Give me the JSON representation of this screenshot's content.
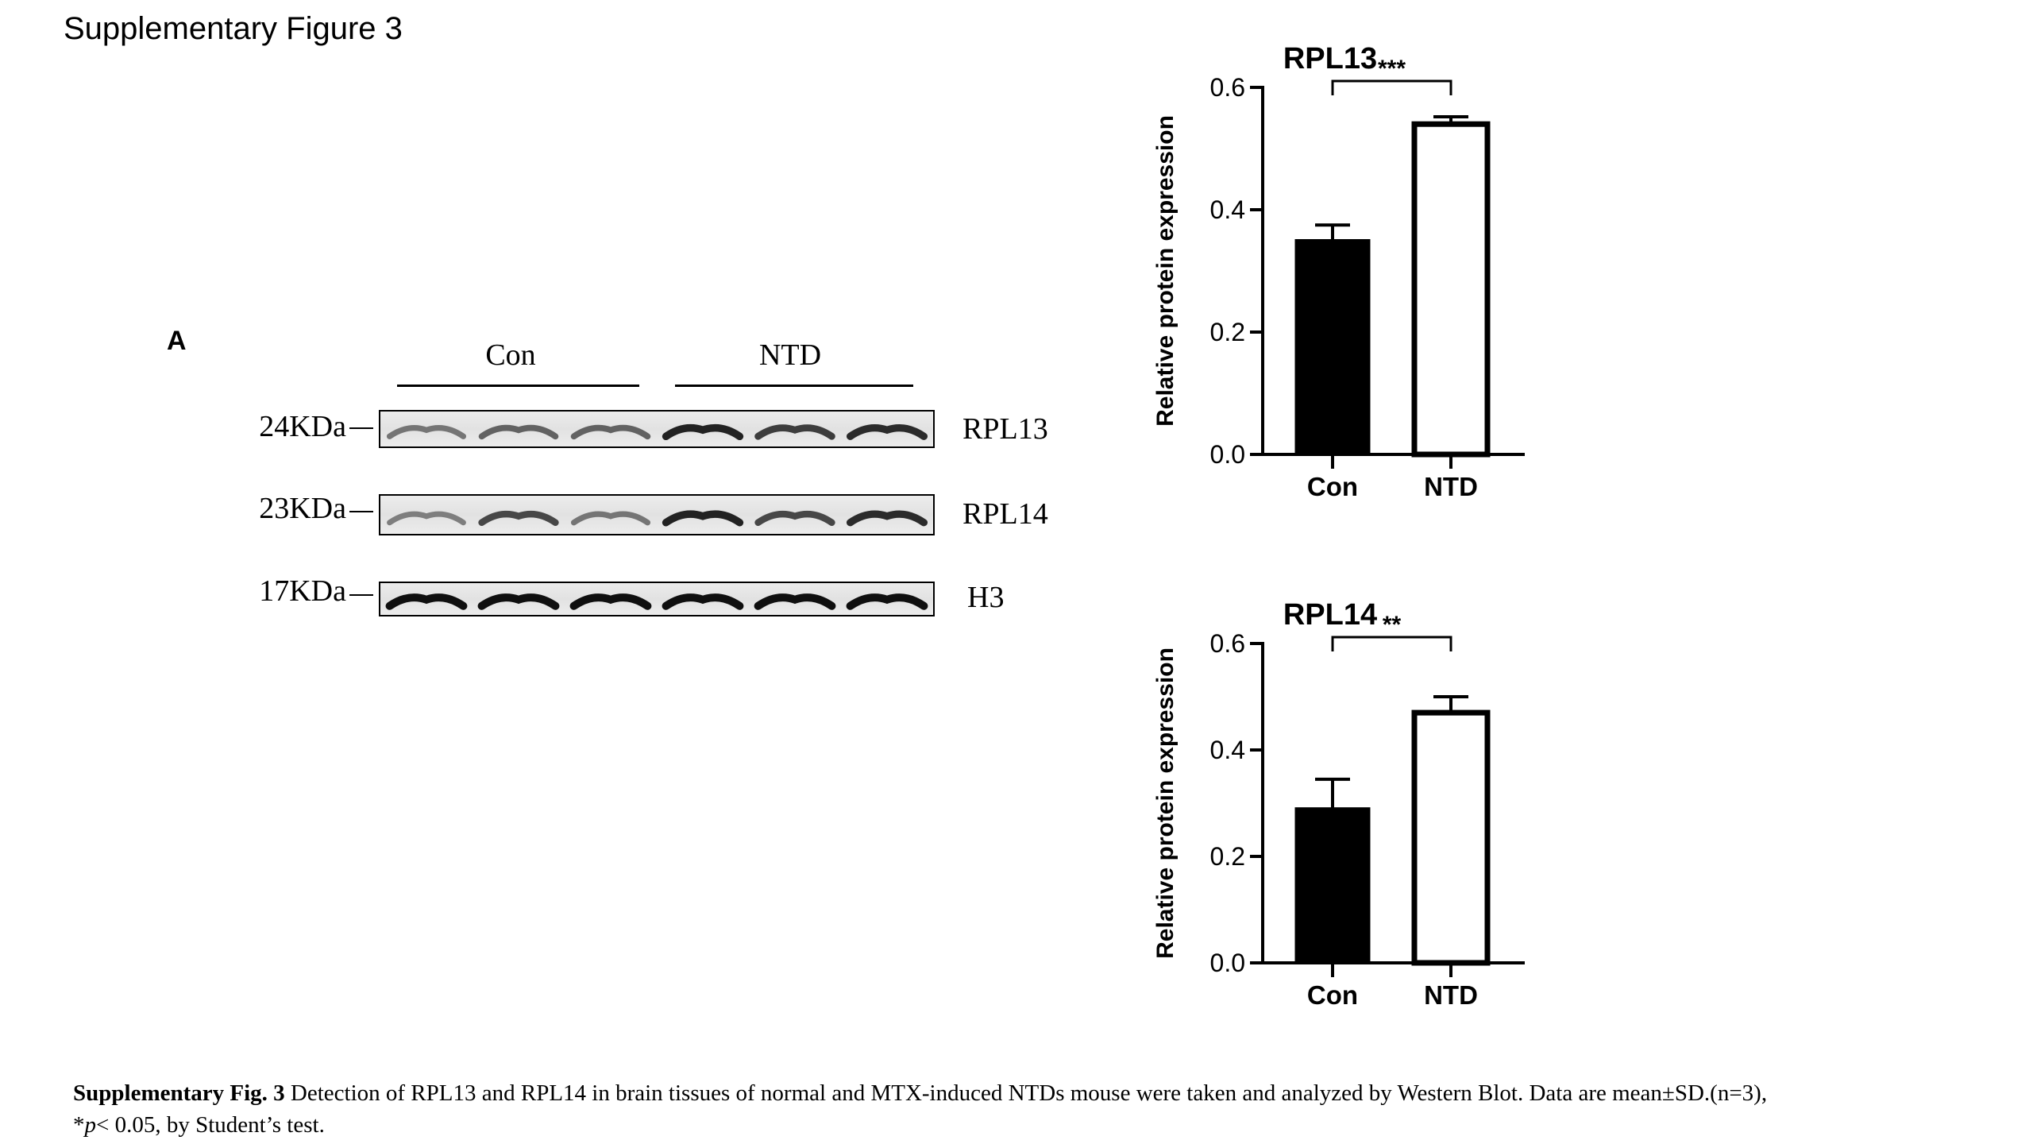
{
  "page": {
    "title": "Supplementary Figure 3",
    "panel_label": "A"
  },
  "western_blot": {
    "groups": [
      "Con",
      "NTD"
    ],
    "rows": [
      {
        "mw": "24KDa",
        "protein": "RPL13",
        "intensities": [
          0.45,
          0.55,
          0.55,
          0.9,
          0.75,
          0.85
        ]
      },
      {
        "mw": "23KDa",
        "protein": "RPL14",
        "intensities": [
          0.4,
          0.7,
          0.45,
          0.9,
          0.7,
          0.85
        ]
      },
      {
        "mw": "17KDa",
        "protein": "H3",
        "intensities": [
          1.0,
          1.0,
          1.0,
          1.0,
          1.0,
          1.0
        ]
      }
    ]
  },
  "chart_data": [
    {
      "type": "bar",
      "title": "RPL13",
      "ylabel": "Relative protein expression",
      "xlabel": "",
      "categories": [
        "Con",
        "NTD"
      ],
      "values": [
        0.35,
        0.54
      ],
      "errors": [
        0.025,
        0.012
      ],
      "bar_fills": [
        "#000000",
        "#ffffff"
      ],
      "ylim": [
        0,
        0.6
      ],
      "yticks": [
        "0.0",
        "0.2",
        "0.4",
        "0.6"
      ],
      "significance": "***"
    },
    {
      "type": "bar",
      "title": "RPL14",
      "ylabel": "Relative protein expression",
      "xlabel": "",
      "categories": [
        "Con",
        "NTD"
      ],
      "values": [
        0.29,
        0.47
      ],
      "errors": [
        0.055,
        0.03
      ],
      "bar_fills": [
        "#000000",
        "#ffffff"
      ],
      "ylim": [
        0,
        0.6
      ],
      "yticks": [
        "0.0",
        "0.2",
        "0.4",
        "0.6"
      ],
      "significance": "**"
    }
  ],
  "caption": {
    "bold": "Supplementary Fig. 3",
    "text": " Detection of RPL13 and RPL14 in brain tissues of normal and MTX-induced NTDs mouse were taken and analyzed by Western Blot. Data are mean±SD.(n=3),",
    "line2_prefix": "*",
    "line2_italic": "p",
    "line2_rest": "< 0.05, by Student’s test."
  }
}
